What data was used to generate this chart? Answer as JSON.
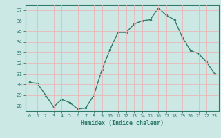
{
  "x": [
    0,
    1,
    2,
    3,
    4,
    5,
    6,
    7,
    8,
    9,
    10,
    11,
    12,
    13,
    14,
    15,
    16,
    17,
    18,
    19,
    20,
    21,
    22,
    23
  ],
  "y": [
    30.2,
    30.1,
    29.0,
    27.9,
    28.6,
    28.3,
    27.7,
    27.8,
    29.0,
    31.4,
    33.3,
    34.9,
    34.9,
    35.7,
    36.0,
    36.1,
    37.2,
    36.5,
    36.1,
    34.4,
    33.2,
    32.9,
    32.1,
    31.0
  ],
  "line_color": "#2d7a6a",
  "marker_color": "#2d7a6a",
  "bg_color": "#cce8e4",
  "grid_color": "#b0d8d0",
  "axis_color": "#2d7a6a",
  "tick_color": "#2d7a6a",
  "xlabel": "Humidex (Indice chaleur)",
  "ylim": [
    27.5,
    37.5
  ],
  "xlim": [
    -0.5,
    23.5
  ],
  "yticks": [
    28,
    29,
    30,
    31,
    32,
    33,
    34,
    35,
    36,
    37
  ],
  "xticks": [
    0,
    1,
    2,
    3,
    4,
    5,
    6,
    7,
    8,
    9,
    10,
    11,
    12,
    13,
    14,
    15,
    16,
    17,
    18,
    19,
    20,
    21,
    22,
    23
  ]
}
